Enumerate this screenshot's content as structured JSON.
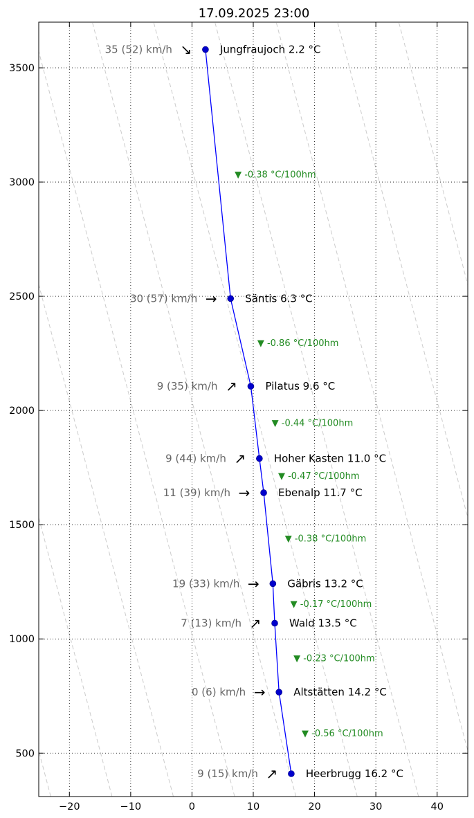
{
  "chart_data": {
    "type": "line",
    "title": "17.09.2025 23:00",
    "xlabel": "",
    "ylabel": "",
    "xlim": [
      -25,
      45
    ],
    "ylim": [
      310,
      3700
    ],
    "xticks": [
      -20,
      -10,
      0,
      10,
      20,
      30,
      40
    ],
    "yticks": [
      500,
      1000,
      1500,
      2000,
      2500,
      3000,
      3500
    ],
    "grid": true,
    "colors": {
      "line": "#0000ff",
      "marker": "#0000cc",
      "lapse": "#228b22",
      "wind": "#666666",
      "dry_adiabat": "#cccccc"
    },
    "dry_adiabat_surface_temps": [
      -30,
      -20,
      -10,
      0,
      10,
      20,
      30,
      40,
      50,
      60,
      70
    ],
    "stations": [
      {
        "name": "Jungfraujoch",
        "altitude": 3580,
        "temp": 2.2,
        "label": "Jungfraujoch 2.2 °C",
        "wind": "35 (52) km/h",
        "arrow": "↘"
      },
      {
        "name": "Säntis",
        "altitude": 2490,
        "temp": 6.3,
        "label": "Säntis 6.3 °C",
        "wind": "30 (57) km/h",
        "arrow": "→"
      },
      {
        "name": "Pilatus",
        "altitude": 2106,
        "temp": 9.6,
        "label": "Pilatus 9.6 °C",
        "wind": "9 (35) km/h",
        "arrow": "↗"
      },
      {
        "name": "Hoher Kasten",
        "altitude": 1790,
        "temp": 11.0,
        "label": "Hoher Kasten 11.0 °C",
        "wind": "9 (44) km/h",
        "arrow": "↗"
      },
      {
        "name": "Ebenalp",
        "altitude": 1640,
        "temp": 11.7,
        "label": "Ebenalp 11.7 °C",
        "wind": "11 (39) km/h",
        "arrow": "→"
      },
      {
        "name": "Gäbris",
        "altitude": 1242,
        "temp": 13.2,
        "label": "Gäbris 13.2 °C",
        "wind": "19 (33) km/h",
        "arrow": "→"
      },
      {
        "name": "Wald",
        "altitude": 1069,
        "temp": 13.5,
        "label": "Wald 13.5 °C",
        "wind": "7 (13) km/h",
        "arrow": "↗"
      },
      {
        "name": "Altstätten",
        "altitude": 767,
        "temp": 14.2,
        "label": "Altstätten 14.2 °C",
        "wind": "0 (6) km/h",
        "arrow": "→"
      },
      {
        "name": "Heerbrugg",
        "altitude": 410,
        "temp": 16.2,
        "label": "Heerbrugg 16.2 °C",
        "wind": "9 (15) km/h",
        "arrow": "↗"
      }
    ],
    "lapse_rates": [
      "▼ -0.38 °C/100hm",
      "▼ -0.86 °C/100hm",
      "▼ -0.44 °C/100hm",
      "▼ -0.47 °C/100hm",
      "▼ -0.38 °C/100hm",
      "▼ -0.17 °C/100hm",
      "▼ -0.23 °C/100hm",
      "▼ -0.56 °C/100hm"
    ]
  }
}
